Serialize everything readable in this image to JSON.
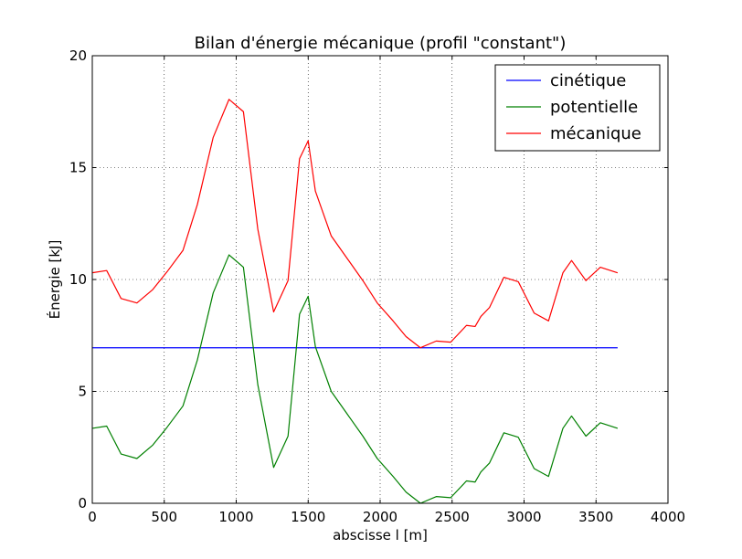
{
  "chart_data": {
    "type": "line",
    "title": "Bilan d'énergie mécanique (profil \"constant\")",
    "xlabel": "abscisse l [m]",
    "ylabel": "Énergie [kJ]",
    "xlim": [
      0,
      4000
    ],
    "ylim": [
      0,
      20
    ],
    "xticks": [
      "0",
      "500",
      "1000",
      "1500",
      "2000",
      "2500",
      "3000",
      "3500",
      "4000"
    ],
    "yticks": [
      "0",
      "5",
      "10",
      "15",
      "20"
    ],
    "grid": true,
    "legend_position": "top-right",
    "series": [
      {
        "name": "cinétique",
        "color": "#0000ff",
        "x": [
          0,
          3650
        ],
        "y": [
          6.95,
          6.95
        ]
      },
      {
        "name": "potentielle",
        "color": "#008000",
        "x": [
          0,
          100,
          200,
          310,
          420,
          520,
          630,
          730,
          840,
          950,
          1050,
          1150,
          1260,
          1360,
          1440,
          1500,
          1550,
          1660,
          1770,
          1880,
          1980,
          2090,
          2180,
          2280,
          2390,
          2490,
          2600,
          2660,
          2700,
          2760,
          2860,
          2960,
          3070,
          3170,
          3270,
          3330,
          3430,
          3530,
          3650
        ],
        "y": [
          3.35,
          3.45,
          2.2,
          2.0,
          2.6,
          3.4,
          4.35,
          6.4,
          9.4,
          11.1,
          10.55,
          5.3,
          1.6,
          3.0,
          8.45,
          9.25,
          7.0,
          5.0,
          4.0,
          3.0,
          2.0,
          1.2,
          0.5,
          0.0,
          0.3,
          0.25,
          1.0,
          0.95,
          1.4,
          1.8,
          3.15,
          2.95,
          1.55,
          1.2,
          3.35,
          3.9,
          3.0,
          3.6,
          3.35
        ]
      },
      {
        "name": "mécanique",
        "color": "#ff0000",
        "x": [
          0,
          100,
          200,
          310,
          420,
          520,
          630,
          730,
          840,
          950,
          1050,
          1150,
          1260,
          1360,
          1440,
          1500,
          1550,
          1660,
          1770,
          1880,
          1980,
          2090,
          2180,
          2280,
          2390,
          2490,
          2600,
          2660,
          2700,
          2760,
          2860,
          2960,
          3070,
          3170,
          3270,
          3330,
          3430,
          3530,
          3650
        ],
        "y": [
          10.3,
          10.4,
          9.15,
          8.95,
          9.55,
          10.35,
          11.3,
          13.35,
          16.35,
          18.05,
          17.5,
          12.25,
          8.55,
          9.95,
          15.4,
          16.2,
          13.95,
          11.95,
          10.95,
          9.95,
          8.95,
          8.15,
          7.45,
          6.95,
          7.25,
          7.2,
          7.95,
          7.9,
          8.35,
          8.75,
          10.1,
          9.9,
          8.5,
          8.15,
          10.3,
          10.85,
          9.95,
          10.55,
          10.3
        ]
      }
    ]
  }
}
